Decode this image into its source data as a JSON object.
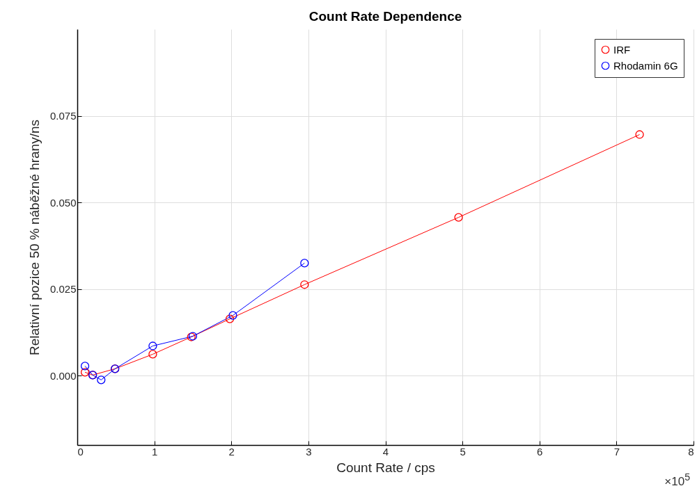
{
  "chart_data": {
    "type": "line",
    "title": "Count Rate Dependence",
    "xlabel": "Count Rate / cps",
    "ylabel": "Relativní pozice 50 % náběžné hrany/ns",
    "xlim": [
      0,
      8
    ],
    "xticks": [
      0,
      1,
      2,
      3,
      4,
      5,
      6,
      7,
      8
    ],
    "ylim": [
      -0.02,
      0.1
    ],
    "yticks": [
      {
        "value": 0,
        "label": "0.000"
      },
      {
        "value": 0.025,
        "label": "0.025"
      },
      {
        "value": 0.05,
        "label": "0.050"
      },
      {
        "value": 0.075,
        "label": "0.075"
      }
    ],
    "series": [
      {
        "name": "IRF",
        "color": "#ff0000",
        "x": [
          0.1,
          0.2,
          0.49,
          0.98,
          1.48,
          1.98,
          2.95,
          4.95,
          7.3
        ],
        "values": [
          0.001,
          0.0002,
          0.002,
          0.0062,
          0.0112,
          0.0164,
          0.0263,
          0.0457,
          0.0696
        ]
      },
      {
        "name": "Rhodamin 6G",
        "color": "#0000ff",
        "x": [
          0.1,
          0.2,
          0.31,
          0.49,
          0.98,
          1.5,
          2.02,
          2.95
        ],
        "values": [
          0.0028,
          0.0002,
          -0.0012,
          0.002,
          0.0086,
          0.0114,
          0.0174,
          0.0325
        ]
      }
    ],
    "annotations": [
      "×10$^{5}$"
    ],
    "grid": true,
    "legend": "top right",
    "marker": "circle",
    "line_style": "solid"
  }
}
